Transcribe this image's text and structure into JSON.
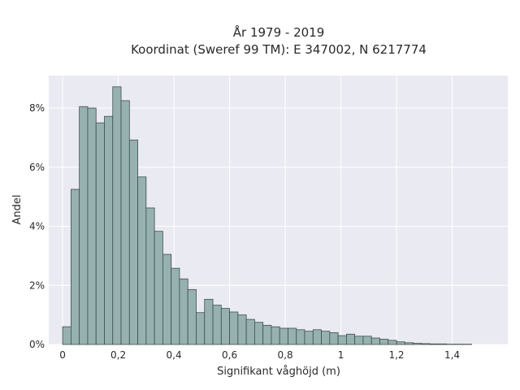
{
  "chart_data": {
    "type": "bar",
    "title_line1": "År 1979 - 2019",
    "title_line2": "Koordinat (Sweref 99 TM): E 347002, N 6217774",
    "xlabel": "Signifikant våghöjd (m)",
    "ylabel": "Andel",
    "x_ticks": [
      {
        "value": 0,
        "label": "0"
      },
      {
        "value": 0.2,
        "label": "0,2"
      },
      {
        "value": 0.4,
        "label": "0,4"
      },
      {
        "value": 0.6,
        "label": "0,6"
      },
      {
        "value": 0.8,
        "label": "0,8"
      },
      {
        "value": 1.0,
        "label": "1"
      },
      {
        "value": 1.2,
        "label": "1,2"
      },
      {
        "value": 1.4,
        "label": "1,4"
      }
    ],
    "y_ticks": [
      {
        "value": 0,
        "label": "0%"
      },
      {
        "value": 2,
        "label": "2%"
      },
      {
        "value": 4,
        "label": "4%"
      },
      {
        "value": 6,
        "label": "6%"
      },
      {
        "value": 8,
        "label": "8%"
      }
    ],
    "xlim": [
      -0.05,
      1.6
    ],
    "ylim": [
      0,
      9.1
    ],
    "grid": true,
    "legend": "none",
    "bin_width": 0.03,
    "bin_starts": [
      0.0,
      0.03,
      0.06,
      0.09,
      0.12,
      0.15,
      0.18,
      0.21,
      0.24,
      0.27,
      0.3,
      0.33,
      0.36,
      0.39,
      0.42,
      0.45,
      0.48,
      0.51,
      0.54,
      0.57,
      0.6,
      0.63,
      0.66,
      0.69,
      0.72,
      0.75,
      0.78,
      0.81,
      0.84,
      0.87,
      0.9,
      0.93,
      0.96,
      0.99,
      1.02,
      1.05,
      1.08,
      1.11,
      1.14,
      1.17,
      1.2,
      1.23,
      1.26,
      1.29,
      1.32,
      1.35,
      1.38,
      1.41,
      1.44
    ],
    "values": [
      0.6,
      5.25,
      8.05,
      8.0,
      7.5,
      7.72,
      8.72,
      8.25,
      6.92,
      5.67,
      4.62,
      3.83,
      3.05,
      2.58,
      2.22,
      1.86,
      1.08,
      1.53,
      1.33,
      1.22,
      1.1,
      1.0,
      0.85,
      0.75,
      0.65,
      0.6,
      0.55,
      0.55,
      0.5,
      0.45,
      0.5,
      0.45,
      0.4,
      0.3,
      0.35,
      0.28,
      0.28,
      0.22,
      0.18,
      0.14,
      0.09,
      0.06,
      0.04,
      0.03,
      0.02,
      0.02,
      0.01,
      0.01,
      0.01
    ],
    "colors": {
      "bar_fill": "#97b1b1",
      "bar_stroke": "#3e4e4e",
      "plot_background": "#eaeaf2",
      "grid": "#ffffff"
    }
  }
}
